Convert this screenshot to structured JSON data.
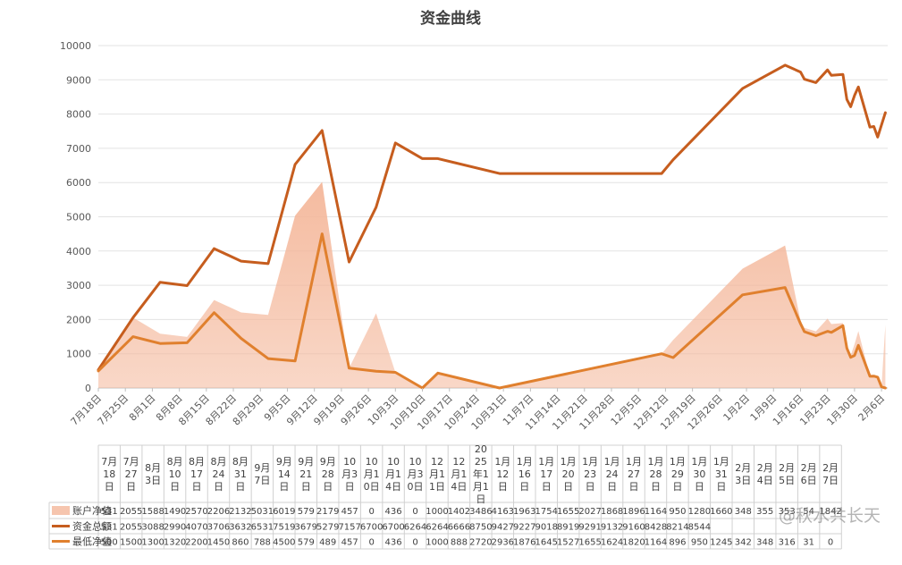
{
  "chart_data": {
    "type": "area",
    "title": "资金曲线",
    "xlabel": "",
    "ylabel": "",
    "ylim": [
      0,
      10000
    ],
    "yticks": [
      0,
      1000,
      2000,
      3000,
      4000,
      5000,
      6000,
      7000,
      8000,
      9000,
      10000
    ],
    "grid": true,
    "legend": "bottom-left (inside data table)",
    "axis_labels": [
      "7月18日",
      "7月25日",
      "8月1日",
      "8月8日",
      "8月15日",
      "8月22日",
      "8月29日",
      "9月5日",
      "9月12日",
      "9月19日",
      "9月26日",
      "10月3日",
      "10月10日",
      "10月17日",
      "10月24日",
      "10月31日",
      "11月7日",
      "11月14日",
      "11月21日",
      "11月28日",
      "12月5日",
      "12月12日",
      "12月19日",
      "12月26日",
      "1月2日",
      "1月9日",
      "1月16日",
      "1月23日",
      "1月30日",
      "2月6日"
    ],
    "table_dates": [
      "7月18日",
      "7月27日",
      "8月3日",
      "8月10日",
      "8月17日",
      "8月24日",
      "8月31日",
      "9月7日",
      "9月14日",
      "9月21日",
      "9月28日",
      "10月3日",
      "10月10日",
      "10月14日",
      "10月30日",
      "12月11日",
      "12月14日",
      "2025年1月1日",
      "1月12日",
      "1月16日",
      "1月17日",
      "1月20日",
      "1月23日",
      "1月24日",
      "1月27日",
      "1月28日",
      "1月29日",
      "1月30日",
      "1月31日",
      "2月3日",
      "2月4日",
      "2月5日",
      "2月6日",
      "2月7日"
    ],
    "x": [
      0,
      9,
      16,
      23,
      30,
      37,
      44,
      51,
      58,
      65,
      72,
      77,
      84,
      88,
      104,
      146,
      149,
      167,
      178,
      182,
      183,
      186,
      189,
      190,
      193,
      194,
      195,
      196,
      197,
      200,
      201,
      202,
      203,
      204
    ],
    "series": [
      {
        "name": "账户净值",
        "style": "area",
        "color": "#f4b79a",
        "values": [
          531,
          2055,
          1588,
          1490,
          2570,
          2206,
          2132,
          5031,
          6019,
          579,
          2179,
          457,
          0,
          436,
          0,
          1000,
          1402,
          3486,
          4163,
          1963,
          1754,
          1655,
          2027,
          1868,
          1896,
          1164,
          950,
          1280,
          1660,
          348,
          355,
          353,
          54,
          1842
        ]
      },
      {
        "name": "资金总额",
        "style": "line",
        "color": "#c65d1e",
        "values": [
          531,
          2055,
          3088,
          2990,
          4070,
          3706,
          3632,
          6531,
          7519,
          3679,
          5279,
          7157,
          6700,
          6700,
          6264,
          6264,
          6666,
          8750,
          9427,
          9227,
          9018,
          8919,
          9291,
          9132,
          9160,
          8428,
          8214,
          8544,
          8791,
          7620,
          7637,
          7329,
          null,
          8042
        ]
      },
      {
        "name": "最低净值",
        "style": "line",
        "color": "#e0802e",
        "values": [
          500,
          1500,
          1300,
          1320,
          2200,
          1450,
          860,
          788,
          4500,
          579,
          489,
          457,
          0,
          436,
          0,
          1000,
          888,
          2720,
          2936,
          1876,
          1645,
          1527,
          1655,
          1624,
          1820,
          1164,
          896,
          950,
          1245,
          342,
          348,
          316,
          31,
          0
        ]
      }
    ],
    "table_rows": [
      {
        "legend": "账户净值",
        "cells": [
          "531",
          "2055",
          "1588",
          "1490",
          "2570",
          "2206",
          "2132",
          "5031",
          "6019",
          "579",
          "2179",
          "457",
          "0",
          "436",
          "0",
          "1000",
          "1402",
          "3486",
          "4163",
          "1963",
          "1754",
          "1655",
          "2027",
          "1868",
          "1896",
          "1164",
          "950",
          "1280",
          "1660",
          "348",
          "355",
          "353",
          "54",
          "1842"
        ]
      },
      {
        "legend": "资金总额",
        "cells": [
          "531",
          "2055",
          "3088",
          "2990",
          "4070",
          "3706",
          "3632",
          "6531",
          "7519",
          "3679",
          "5279",
          "7157",
          "6700",
          "6700",
          "6264",
          "6264",
          "6666",
          "8750",
          "9427",
          "9227",
          "9018",
          "8919",
          "9291",
          "9132",
          "9160",
          "8428",
          "8214",
          "8544",
          "",
          "",
          "",
          "",
          "",
          ""
        ]
      },
      {
        "legend": "最低净值",
        "cells": [
          "500",
          "1500",
          "1300",
          "1320",
          "2200",
          "1450",
          "860",
          "788",
          "4500",
          "579",
          "489",
          "457",
          "0",
          "436",
          "0",
          "1000",
          "888",
          "2720",
          "2936",
          "1876",
          "1645",
          "1527",
          "1655",
          "1624",
          "1820",
          "1164",
          "896",
          "950",
          "1245",
          "342",
          "348",
          "316",
          "31",
          "0"
        ]
      }
    ],
    "watermark": "@秋水共长天"
  }
}
